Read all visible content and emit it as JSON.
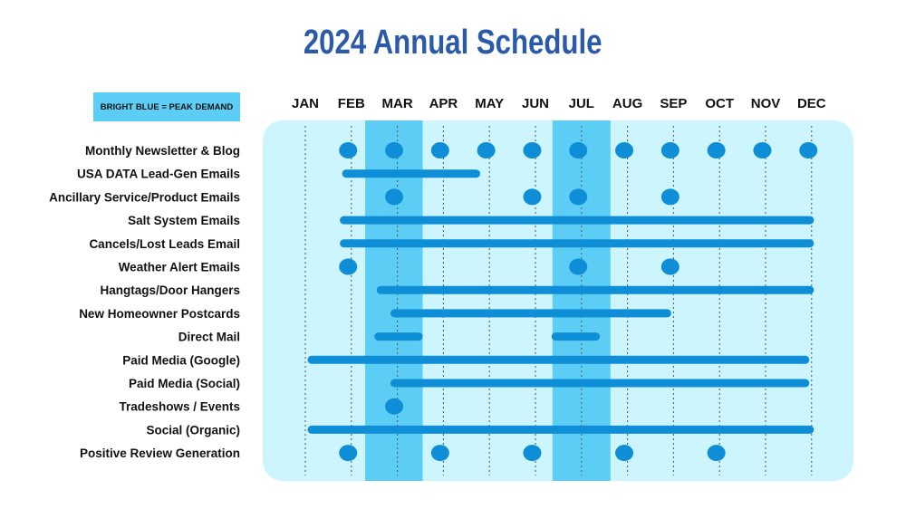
{
  "page": {
    "title": "2024 Annual Schedule",
    "legend": "BRIGHT BLUE = PEAK DEMAND"
  },
  "colors": {
    "title": "#2a5aa8",
    "panel": "#cdf5fd",
    "peak": "#5ccdf5",
    "mark": "#0f8ed8",
    "gridline": "#555555",
    "text": "#111111"
  },
  "chart_data": {
    "type": "gantt",
    "title": "2024 Annual Schedule",
    "legend": "BRIGHT BLUE = PEAK DEMAND",
    "months": [
      "JAN",
      "FEB",
      "MAR",
      "APR",
      "MAY",
      "JUN",
      "JUL",
      "AUG",
      "SEP",
      "OCT",
      "NOV",
      "DEC"
    ],
    "peak_periods": [
      {
        "start": "MAR",
        "end": "APR",
        "start_pos": 1.3,
        "end_pos": 2.55
      },
      {
        "start": "JUL",
        "end": "AUG",
        "start_pos": 5.37,
        "end_pos": 6.63
      }
    ],
    "rows": [
      {
        "label": "Monthly Newsletter & Blog",
        "bars": [],
        "dots": [
          0.93,
          1.93,
          2.93,
          3.93,
          4.93,
          5.93,
          6.93,
          7.93,
          8.93,
          9.93,
          10.93
        ]
      },
      {
        "label": "USA DATA Lead-Gen Emails",
        "bars": [
          [
            0.8,
            3.8
          ]
        ],
        "dots": []
      },
      {
        "label": "Ancillary Service/Product Emails",
        "bars": [],
        "dots": [
          1.93,
          4.93,
          5.93,
          7.93
        ]
      },
      {
        "label": "Salt System Emails",
        "bars": [
          [
            0.75,
            11.05
          ]
        ],
        "dots": []
      },
      {
        "label": "Cancels/Lost Leads Email",
        "bars": [
          [
            0.75,
            11.05
          ]
        ],
        "dots": []
      },
      {
        "label": "Weather Alert Emails",
        "bars": [],
        "dots": [
          0.93,
          5.93,
          7.93
        ]
      },
      {
        "label": "Hangtags/Door Hangers",
        "bars": [
          [
            1.55,
            11.05
          ]
        ],
        "dots": []
      },
      {
        "label": "New Homeowner Postcards",
        "bars": [
          [
            1.85,
            7.95
          ]
        ],
        "dots": []
      },
      {
        "label": "Direct Mail",
        "bars": [
          [
            1.5,
            2.55
          ],
          [
            5.35,
            6.4
          ]
        ],
        "dots": []
      },
      {
        "label": "Paid Media (Google)",
        "bars": [
          [
            0.05,
            10.95
          ]
        ],
        "dots": []
      },
      {
        "label": "Paid Media (Social)",
        "bars": [
          [
            1.85,
            10.95
          ]
        ],
        "dots": []
      },
      {
        "label": "Tradeshows / Events",
        "bars": [],
        "dots": [
          1.93
        ]
      },
      {
        "label": "Social (Organic)",
        "bars": [
          [
            0.05,
            11.05
          ]
        ],
        "dots": []
      },
      {
        "label": "Positive Review Generation",
        "bars": [],
        "dots": [
          0.93,
          2.93,
          4.93,
          6.93,
          8.93
        ]
      }
    ]
  }
}
